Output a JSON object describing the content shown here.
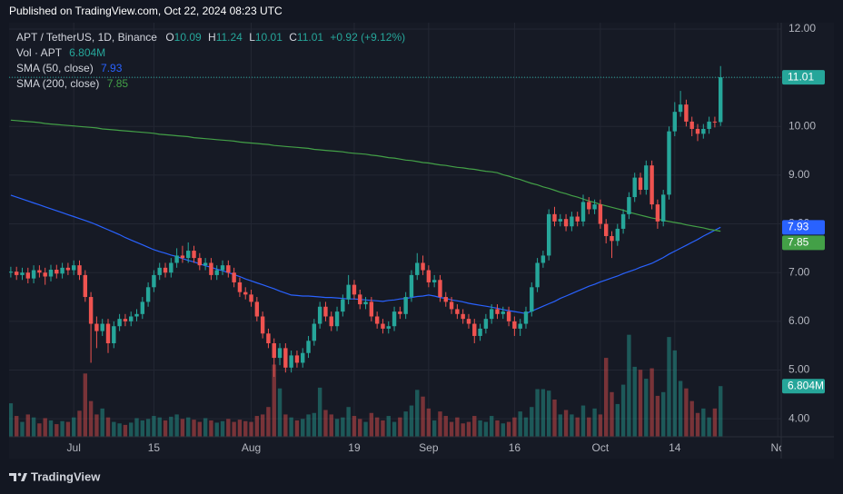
{
  "page": {
    "published": "Published on TradingView.com, Oct 22, 2024 08:23 UTC",
    "brand": "TradingView"
  },
  "chart_data": {
    "type": "candlestick",
    "symbol": "APT / TetherUS, 1D, Binance",
    "ohlc_letters": [
      "O",
      "H",
      "L",
      "C"
    ],
    "change": "+0.92 (+9.12%)",
    "up_color": "#26a69a",
    "down_color": "#ef5350",
    "open": [
      7.0,
      7.02,
      6.95,
      7.0,
      6.88,
      7.05,
      7.0,
      6.92,
      7.06,
      6.98,
      7.1,
      7.05,
      7.15,
      6.95,
      6.5,
      5.95,
      5.8,
      5.95,
      5.55,
      5.9,
      6.05,
      6.0,
      6.1,
      6.15,
      6.4,
      6.7,
      6.95,
      7.1,
      7.0,
      7.2,
      7.35,
      7.3,
      7.45,
      7.3,
      7.15,
      7.2,
      6.95,
      7.05,
      7.15,
      7.0,
      6.8,
      6.6,
      6.55,
      6.4,
      6.1,
      5.75,
      5.55,
      5.25,
      5.45,
      5.05,
      5.3,
      5.15,
      5.35,
      5.6,
      5.95,
      6.3,
      6.1,
      5.9,
      6.2,
      6.45,
      6.75,
      6.55,
      6.35,
      6.4,
      6.1,
      5.95,
      5.85,
      5.9,
      6.2,
      6.15,
      6.5,
      6.95,
      7.2,
      7.05,
      6.8,
      6.85,
      6.5,
      6.4,
      6.25,
      6.15,
      6.05,
      5.95,
      5.7,
      5.85,
      6.05,
      6.25,
      6.15,
      6.2,
      6.0,
      5.85,
      5.95,
      6.2,
      6.7,
      7.2,
      7.35,
      8.2,
      8.05,
      8.1,
      7.95,
      8.15,
      8.05,
      8.45,
      8.3,
      8.4,
      8.0,
      7.75,
      7.65,
      7.9,
      8.2,
      8.55,
      8.95,
      8.7,
      9.2,
      8.4,
      8.05,
      8.6,
      9.9,
      10.3,
      10.45,
      10.1,
      9.95,
      9.85,
      9.95,
      10.1,
      10.09
    ],
    "high": [
      7.12,
      7.12,
      7.1,
      7.1,
      7.15,
      7.15,
      7.1,
      7.16,
      7.16,
      7.2,
      7.2,
      7.25,
      7.25,
      7.05,
      6.6,
      6.1,
      6.05,
      6.05,
      6.0,
      6.15,
      6.15,
      6.2,
      6.25,
      6.5,
      6.8,
      7.05,
      7.2,
      7.2,
      7.3,
      7.5,
      7.55,
      7.62,
      7.55,
      7.4,
      7.3,
      7.3,
      7.15,
      7.25,
      7.25,
      7.1,
      6.9,
      6.7,
      6.65,
      6.5,
      6.2,
      5.85,
      5.65,
      5.55,
      5.55,
      5.4,
      5.4,
      5.45,
      5.7,
      6.05,
      6.4,
      6.4,
      6.2,
      6.3,
      6.55,
      6.95,
      6.85,
      6.65,
      6.5,
      6.5,
      6.2,
      6.05,
      6.0,
      6.3,
      6.3,
      6.6,
      7.05,
      7.4,
      7.35,
      7.15,
      6.95,
      6.95,
      6.6,
      6.5,
      6.35,
      6.25,
      6.15,
      6.05,
      5.95,
      6.15,
      6.35,
      6.35,
      6.3,
      6.3,
      6.1,
      6.05,
      6.3,
      6.8,
      7.3,
      7.45,
      8.3,
      8.35,
      8.2,
      8.2,
      8.25,
      8.25,
      8.6,
      8.55,
      8.5,
      8.5,
      8.1,
      7.85,
      8.0,
      8.3,
      8.65,
      9.05,
      9.05,
      9.3,
      9.3,
      8.5,
      8.7,
      10.0,
      10.5,
      10.73,
      10.55,
      10.2,
      10.05,
      10.05,
      10.2,
      10.2,
      11.24
    ],
    "low": [
      6.9,
      6.85,
      6.85,
      6.78,
      6.78,
      6.9,
      6.75,
      6.82,
      6.88,
      6.88,
      6.95,
      6.95,
      6.85,
      6.4,
      5.15,
      5.45,
      5.7,
      5.35,
      5.45,
      5.8,
      5.9,
      5.9,
      6.0,
      6.05,
      6.3,
      6.6,
      6.85,
      6.9,
      6.9,
      7.1,
      7.2,
      7.2,
      7.2,
      7.05,
      7.05,
      6.85,
      6.85,
      6.95,
      6.9,
      6.7,
      6.5,
      6.45,
      6.3,
      6.0,
      5.65,
      5.45,
      4.86,
      5.1,
      4.95,
      4.95,
      5.05,
      5.05,
      5.25,
      5.5,
      5.85,
      6.0,
      5.8,
      5.8,
      6.1,
      6.35,
      6.45,
      6.25,
      6.25,
      6.0,
      5.85,
      5.75,
      5.75,
      5.8,
      6.05,
      6.05,
      6.4,
      6.85,
      6.95,
      6.7,
      6.7,
      6.4,
      6.3,
      6.15,
      6.05,
      5.95,
      5.85,
      5.55,
      5.6,
      5.75,
      5.95,
      6.05,
      6.05,
      5.9,
      5.7,
      5.7,
      5.85,
      6.1,
      6.6,
      7.1,
      7.25,
      7.95,
      7.95,
      7.85,
      7.85,
      7.95,
      7.95,
      8.2,
      8.2,
      7.9,
      7.6,
      7.3,
      7.55,
      7.8,
      8.1,
      8.45,
      8.6,
      8.6,
      8.3,
      7.9,
      7.95,
      8.5,
      9.8,
      10.2,
      10.0,
      9.8,
      9.7,
      9.75,
      9.85,
      9.98,
      10.01
    ],
    "close": [
      7.02,
      6.95,
      7.0,
      6.88,
      7.05,
      7.0,
      6.92,
      7.06,
      6.98,
      7.1,
      7.05,
      7.15,
      6.95,
      6.5,
      5.95,
      5.8,
      5.95,
      5.55,
      5.9,
      6.05,
      6.0,
      6.1,
      6.15,
      6.4,
      6.7,
      6.95,
      7.1,
      7.0,
      7.2,
      7.35,
      7.3,
      7.45,
      7.3,
      7.15,
      7.2,
      6.95,
      7.05,
      7.15,
      7.0,
      6.8,
      6.6,
      6.55,
      6.4,
      6.1,
      5.75,
      5.55,
      5.25,
      5.45,
      5.05,
      5.3,
      5.15,
      5.35,
      5.6,
      5.95,
      6.3,
      6.1,
      5.9,
      6.2,
      6.45,
      6.75,
      6.55,
      6.35,
      6.4,
      6.1,
      5.95,
      5.85,
      5.9,
      6.2,
      6.15,
      6.5,
      6.95,
      7.2,
      7.05,
      6.8,
      6.85,
      6.5,
      6.4,
      6.25,
      6.15,
      6.05,
      5.95,
      5.7,
      5.85,
      6.05,
      6.25,
      6.15,
      6.2,
      6.0,
      5.85,
      5.95,
      6.2,
      6.7,
      7.2,
      7.35,
      8.2,
      8.05,
      8.1,
      7.95,
      8.15,
      8.05,
      8.45,
      8.3,
      8.4,
      8.0,
      7.75,
      7.65,
      7.9,
      8.2,
      8.55,
      8.95,
      8.7,
      9.2,
      8.4,
      8.05,
      8.6,
      9.9,
      10.3,
      10.45,
      10.1,
      9.95,
      9.85,
      9.95,
      10.1,
      10.09,
      11.01
    ],
    "volume": {
      "name": "Vol · APT",
      "last_label": "6.804M",
      "values": [
        4.5,
        2.8,
        2.0,
        3.0,
        2.6,
        1.8,
        2.5,
        2.2,
        1.7,
        2.1,
        2.0,
        2.6,
        3.5,
        8.5,
        4.8,
        3.0,
        3.8,
        2.6,
        2.0,
        1.8,
        1.6,
        1.9,
        2.5,
        2.2,
        2.4,
        2.8,
        2.6,
        2.2,
        2.7,
        3.0,
        2.4,
        2.6,
        2.3,
        2.0,
        2.5,
        2.2,
        1.9,
        2.1,
        2.4,
        2.0,
        2.3,
        2.1,
        2.0,
        2.8,
        3.0,
        4.0,
        9.7,
        6.5,
        3.0,
        2.6,
        2.2,
        2.4,
        3.0,
        3.2,
        6.6,
        3.6,
        3.0,
        2.4,
        2.6,
        4.0,
        2.8,
        2.4,
        2.0,
        3.2,
        2.6,
        2.2,
        2.8,
        2.0,
        2.6,
        3.4,
        4.2,
        6.3,
        5.4,
        3.8,
        2.2,
        3.4,
        2.8,
        2.0,
        2.6,
        1.8,
        2.0,
        2.8,
        2.2,
        2.0,
        2.8,
        2.2,
        1.8,
        2.0,
        2.6,
        3.4,
        2.6,
        4.0,
        6.4,
        6.4,
        6.2,
        5.0,
        3.0,
        3.6,
        3.0,
        2.6,
        4.2,
        2.6,
        3.8,
        3.0,
        10.6,
        6.0,
        4.4,
        7.0,
        13.7,
        9.4,
        9.0,
        7.8,
        9.2,
        5.5,
        6.0,
        13.4,
        11.6,
        7.5,
        6.5,
        4.8,
        3.2,
        3.8,
        2.6,
        3.8,
        6.804
      ]
    },
    "series": [
      {
        "name": "SMA (50, close)",
        "color": "#2962ff",
        "values": [
          8.59,
          8.55,
          8.51,
          8.47,
          8.43,
          8.39,
          8.35,
          8.31,
          8.27,
          8.23,
          8.19,
          8.15,
          8.11,
          8.07,
          8.03,
          7.98,
          7.93,
          7.88,
          7.83,
          7.78,
          7.72,
          7.67,
          7.62,
          7.57,
          7.52,
          7.47,
          7.43,
          7.4,
          7.36,
          7.33,
          7.29,
          7.25,
          7.22,
          7.18,
          7.14,
          7.11,
          7.07,
          7.04,
          7.0,
          6.96,
          6.92,
          6.87,
          6.83,
          6.79,
          6.75,
          6.71,
          6.67,
          6.62,
          6.58,
          6.54,
          6.53,
          6.52,
          6.52,
          6.51,
          6.5,
          6.49,
          6.49,
          6.48,
          6.47,
          6.46,
          6.46,
          6.45,
          6.44,
          6.43,
          6.42,
          6.41,
          6.43,
          6.44,
          6.46,
          6.47,
          6.49,
          6.51,
          6.52,
          6.54,
          6.52,
          6.49,
          6.47,
          6.44,
          6.42,
          6.4,
          6.37,
          6.35,
          6.33,
          6.31,
          6.29,
          6.27,
          6.24,
          6.22,
          6.2,
          6.18,
          6.16,
          6.21,
          6.26,
          6.31,
          6.36,
          6.41,
          6.47,
          6.52,
          6.57,
          6.62,
          6.67,
          6.72,
          6.76,
          6.81,
          6.85,
          6.89,
          6.93,
          6.98,
          7.02,
          7.06,
          7.11,
          7.15,
          7.19,
          7.25,
          7.31,
          7.38,
          7.44,
          7.5,
          7.56,
          7.62,
          7.68,
          7.75,
          7.81,
          7.87,
          7.93
        ]
      },
      {
        "name": "SMA (200, close)",
        "color": "#43a047",
        "values": [
          10.13,
          10.12,
          10.11,
          10.1,
          10.09,
          10.08,
          10.06,
          10.05,
          10.04,
          10.03,
          10.02,
          10.01,
          10.0,
          9.99,
          9.98,
          9.97,
          9.95,
          9.94,
          9.93,
          9.92,
          9.91,
          9.9,
          9.89,
          9.88,
          9.87,
          9.86,
          9.84,
          9.83,
          9.82,
          9.81,
          9.8,
          9.79,
          9.77,
          9.76,
          9.75,
          9.74,
          9.73,
          9.72,
          9.71,
          9.7,
          9.68,
          9.67,
          9.66,
          9.65,
          9.64,
          9.63,
          9.61,
          9.6,
          9.59,
          9.58,
          9.57,
          9.56,
          9.55,
          9.53,
          9.52,
          9.51,
          9.5,
          9.49,
          9.48,
          9.46,
          9.45,
          9.44,
          9.43,
          9.41,
          9.4,
          9.38,
          9.36,
          9.35,
          9.33,
          9.31,
          9.3,
          9.28,
          9.26,
          9.25,
          9.23,
          9.21,
          9.2,
          9.18,
          9.16,
          9.15,
          9.13,
          9.12,
          9.1,
          9.08,
          9.07,
          9.05,
          9.01,
          8.98,
          8.94,
          8.91,
          8.87,
          8.83,
          8.8,
          8.76,
          8.73,
          8.69,
          8.65,
          8.62,
          8.58,
          8.55,
          8.51,
          8.47,
          8.44,
          8.4,
          8.37,
          8.34,
          8.31,
          8.28,
          8.24,
          8.21,
          8.18,
          8.15,
          8.12,
          8.1,
          8.07,
          8.05,
          8.03,
          8.01,
          7.98,
          7.96,
          7.94,
          7.92,
          7.89,
          7.87,
          7.85
        ]
      }
    ],
    "ylim": [
      3.63,
      12.13
    ],
    "yticks": [
      {
        "value": 4,
        "label": "4.00"
      },
      {
        "value": 5,
        "label": "5.00"
      },
      {
        "value": 6,
        "label": "6.00"
      },
      {
        "value": 7,
        "label": "7.00"
      },
      {
        "value": 8,
        "label": "8.00"
      },
      {
        "value": 9,
        "label": "9.00"
      },
      {
        "value": 10,
        "label": "10.00"
      },
      {
        "value": 11,
        "label": "11.00"
      },
      {
        "value": 12,
        "label": "12.00"
      }
    ],
    "xlim": [
      -0.3,
      134.6
    ],
    "xticks": [
      {
        "value": 11,
        "label": "Jul"
      },
      {
        "value": 25,
        "label": "15"
      },
      {
        "value": 42,
        "label": "Aug"
      },
      {
        "value": 60,
        "label": "19"
      },
      {
        "value": 73,
        "label": "Sep"
      },
      {
        "value": 88,
        "label": "16"
      },
      {
        "value": 103,
        "label": "Oct"
      },
      {
        "value": 116,
        "label": "14"
      },
      {
        "value": 134,
        "label": "No"
      }
    ],
    "grid": true
  }
}
